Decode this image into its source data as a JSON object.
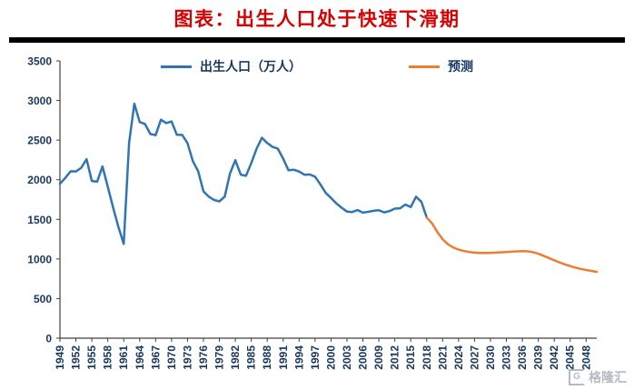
{
  "page": {
    "title": "图表：出生人口处于快速下滑期",
    "title_color": "#d80000",
    "axis_text_color": "#17375e",
    "watermark": {
      "logo_letter": "G",
      "text": "格隆汇"
    }
  },
  "chart_data": {
    "type": "line",
    "title": "图表：出生人口处于快速下滑期",
    "xlabel": "",
    "ylabel": "",
    "ylim": [
      0,
      3500
    ],
    "ytick_step": 500,
    "x_start_year": 1949,
    "x_end_year": 2050,
    "xtick_years": [
      1949,
      1952,
      1955,
      1958,
      1961,
      1964,
      1967,
      1970,
      1973,
      1976,
      1979,
      1982,
      1985,
      1988,
      1991,
      1994,
      1997,
      2000,
      2003,
      2006,
      2009,
      2012,
      2015,
      2018,
      2021,
      2024,
      2027,
      2030,
      2033,
      2036,
      2039,
      2042,
      2045,
      2048
    ],
    "grid": false,
    "legend_position": "top-center",
    "series": [
      {
        "name": "出生人口（万人）",
        "color": "#2e75b6",
        "start_year": 1949,
        "values": [
          1950,
          2023,
          2107,
          2105,
          2151,
          2260,
          1984,
          1976,
          2169,
          1909,
          1650,
          1402,
          1190,
          2464,
          2959,
          2729,
          2704,
          2577,
          2563,
          2757,
          2715,
          2736,
          2567,
          2566,
          2463,
          2235,
          2109,
          1853,
          1787,
          1745,
          1727,
          1787,
          2078,
          2247,
          2065,
          2050,
          2211,
          2393,
          2529,
          2464,
          2414,
          2391,
          2265,
          2119,
          2126,
          2104,
          2063,
          2067,
          2038,
          1942,
          1834,
          1771,
          1702,
          1647,
          1599,
          1593,
          1617,
          1585,
          1595,
          1608,
          1615,
          1588,
          1604,
          1635,
          1640,
          1687,
          1655,
          1786,
          1723,
          1523
        ]
      },
      {
        "name": "预测",
        "color": "#ed7d31",
        "start_year": 2018,
        "values": [
          1523,
          1450,
          1340,
          1250,
          1185,
          1145,
          1118,
          1100,
          1088,
          1080,
          1076,
          1075,
          1077,
          1080,
          1084,
          1088,
          1092,
          1096,
          1098,
          1096,
          1085,
          1066,
          1040,
          1012,
          984,
          957,
          932,
          910,
          891,
          875,
          861,
          849,
          838
        ]
      }
    ]
  }
}
